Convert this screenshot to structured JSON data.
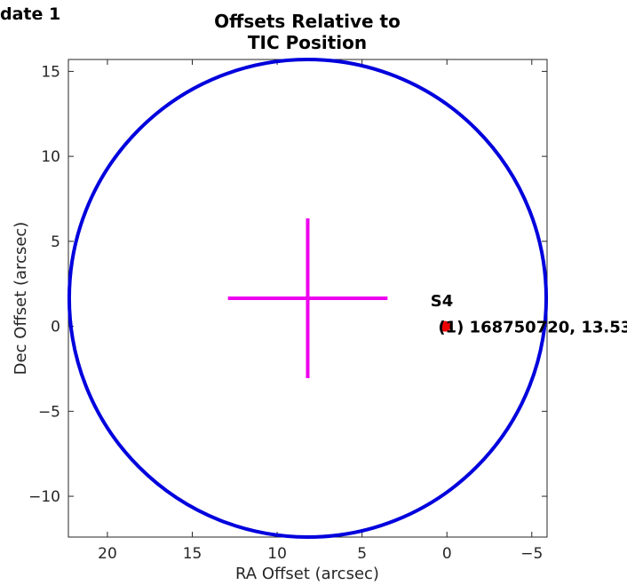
{
  "chart_data": {
    "type": "scatter",
    "corner_title": "date 1",
    "title_lines": [
      "Offsets Relative to",
      "TIC Position"
    ],
    "xlabel": "RA Offset (arcsec)",
    "ylabel": "Dec Offset (arcsec)",
    "xlim": [
      22.3,
      -5.9
    ],
    "ylim": [
      -12.4,
      15.7
    ],
    "x_reversed": true,
    "xticks": [
      20,
      15,
      10,
      5,
      0,
      -5
    ],
    "xtick_labels": [
      "20",
      "15",
      "10",
      "5",
      "0",
      "−5"
    ],
    "yticks": [
      -10,
      -5,
      0,
      5,
      10,
      15
    ],
    "ytick_labels": [
      "−10",
      "−5",
      "0",
      "5",
      "10",
      "15"
    ],
    "grid": false,
    "circle": {
      "center": [
        8.2,
        1.65
      ],
      "radius": 14.05,
      "color": "#0000dd"
    },
    "crosshair": {
      "center": [
        8.2,
        1.65
      ],
      "x_half_length": 4.7,
      "y_half_length": 4.7,
      "color": "#ee00ee"
    },
    "points": [
      {
        "x": 0.1,
        "y": 0.0,
        "color": "#ee0000",
        "label": "(1) 168750720, 13.53"
      }
    ],
    "annotation": {
      "text": "S4",
      "x": 0.3,
      "y": 1.6
    }
  }
}
